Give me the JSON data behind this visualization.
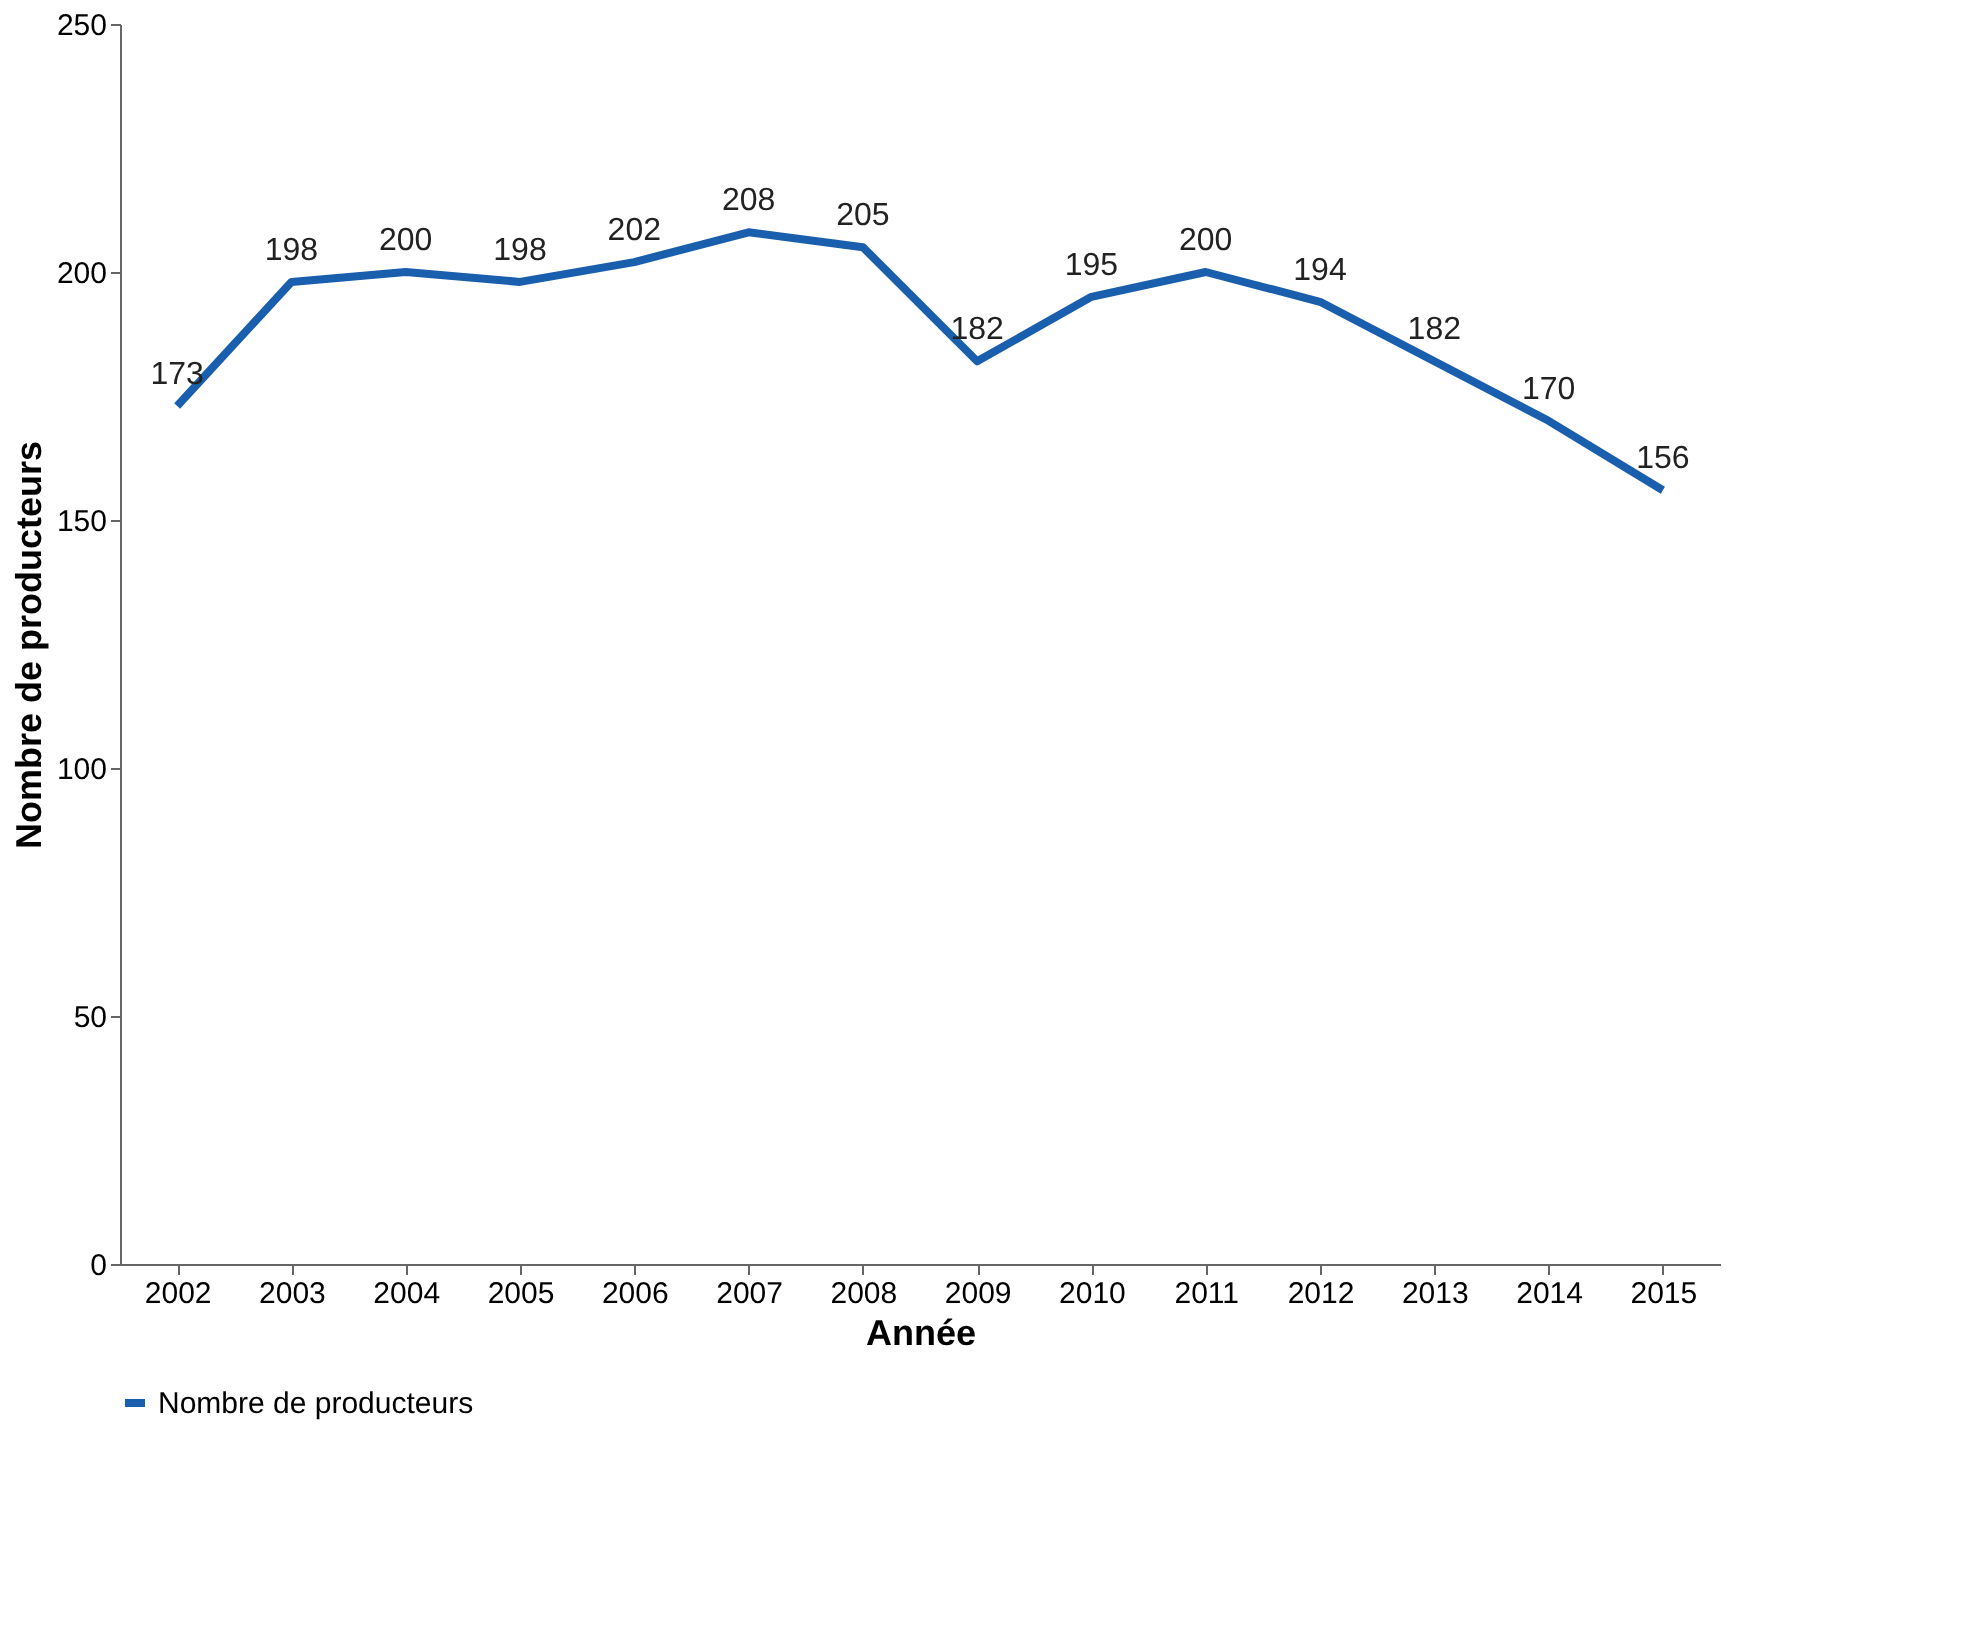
{
  "chart_data": {
    "type": "line",
    "xlabel": "Année",
    "ylabel": "Nombre de producteurs",
    "categories": [
      "2002",
      "2003",
      "2004",
      "2005",
      "2006",
      "2007",
      "2008",
      "2009",
      "2010",
      "2011",
      "2012",
      "2013",
      "2014",
      "2015"
    ],
    "series": [
      {
        "name": "Nombre de producteurs",
        "color": "#1a5fad",
        "values": [
          173,
          198,
          200,
          198,
          202,
          208,
          205,
          182,
          195,
          200,
          194,
          182,
          170,
          156
        ]
      }
    ],
    "ylim": [
      0,
      250
    ],
    "yticks": [
      0,
      50,
      100,
      150,
      200,
      250
    ],
    "data_labels": true,
    "grid": false,
    "legend": "bottom",
    "marker": "none"
  }
}
